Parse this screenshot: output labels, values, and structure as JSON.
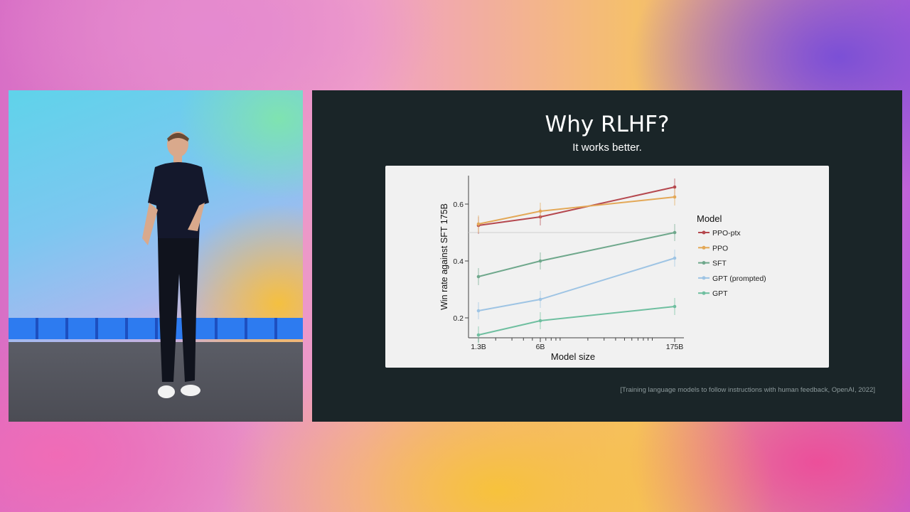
{
  "slide": {
    "title": "Why RLHF?",
    "subtitle": "It works better.",
    "citation": "[Training language models to follow instructions with human feedback, OpenAI, 2022]"
  },
  "chart_data": {
    "type": "line",
    "ylabel": "Win rate against SFT 175B",
    "xlabel": "Model size",
    "x": [
      "1.3B",
      "6B",
      "175B"
    ],
    "x_scale": "log",
    "ylim": [
      0.13,
      0.7
    ],
    "yticks": [
      0.2,
      0.4,
      0.6
    ],
    "reference_line": 0.5,
    "legend_title": "Model",
    "legend_position": "right",
    "series": [
      {
        "name": "PPO-ptx",
        "color": "#b5484f",
        "values": [
          0.525,
          0.555,
          0.66
        ],
        "err": [
          0.03,
          0.03,
          0.03
        ]
      },
      {
        "name": "PPO",
        "color": "#e3a857",
        "values": [
          0.53,
          0.575,
          0.625
        ],
        "err": [
          0.03,
          0.03,
          0.03
        ]
      },
      {
        "name": "SFT",
        "color": "#6fa88c",
        "values": [
          0.345,
          0.4,
          0.5
        ],
        "err": [
          0.03,
          0.03,
          0.03
        ]
      },
      {
        "name": "GPT (prompted)",
        "color": "#9ec4e4",
        "values": [
          0.225,
          0.265,
          0.41
        ],
        "err": [
          0.03,
          0.03,
          0.03
        ]
      },
      {
        "name": "GPT",
        "color": "#6fbfa0",
        "values": [
          0.14,
          0.19,
          0.24
        ],
        "err": [
          0.03,
          0.03,
          0.03
        ]
      }
    ]
  }
}
